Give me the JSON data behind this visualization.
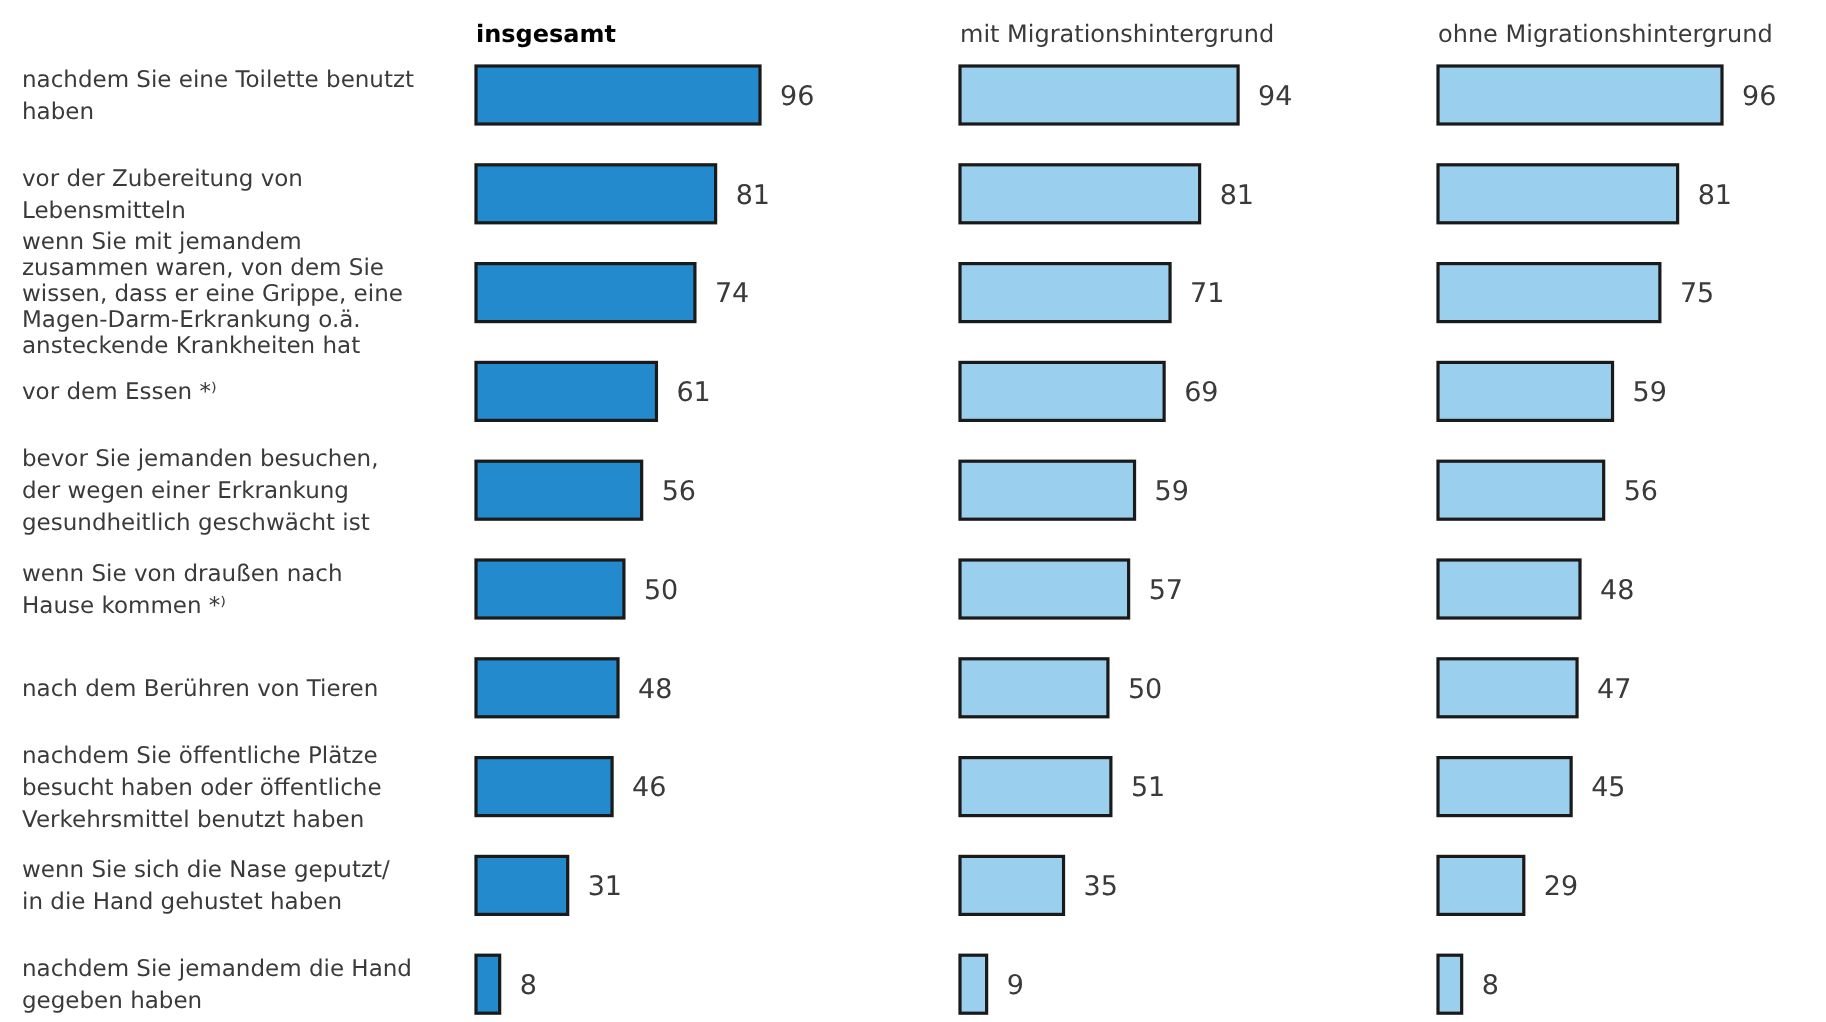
{
  "chart_data": [
    {
      "type": "bar",
      "orientation": "horizontal",
      "title": "insgesamt",
      "categories": [
        "nachdem Sie eine Toilette benutzt haben",
        "vor der Zubereitung von Lebensmitteln",
        "wenn Sie mit jemandem zusammen waren, von dem Sie wissen, dass er eine Grippe, eine Magen-Darm-Erkrankung o.ä. ansteckende Krankheiten hat",
        "vor dem Essen *⁾",
        "bevor Sie jemanden besuchen, der wegen einer Erkrankung gesundheitlich geschwächt ist",
        "wenn Sie von draußen nach Hause kommen *⁾",
        "nach dem Berühren von Tieren",
        "nachdem Sie öffentliche Plätze besucht haben oder öffentliche Verkehrsmittel benutzt haben",
        "wenn Sie sich die Nase geputzt/ in die Hand gehustet haben",
        "nachdem Sie jemandem die Hand gegeben haben"
      ],
      "values": [
        96,
        81,
        74,
        61,
        56,
        50,
        48,
        46,
        31,
        8
      ],
      "color": "#228acd",
      "data_labels": true
    },
    {
      "type": "bar",
      "orientation": "horizontal",
      "title": "mit Migrationshintergrund",
      "categories": [
        null,
        null,
        null,
        null,
        null,
        null,
        null,
        null,
        null,
        null
      ],
      "values": [
        94,
        81,
        71,
        69,
        59,
        57,
        50,
        51,
        35,
        9
      ],
      "color": "#9bcfee",
      "data_labels": true
    },
    {
      "type": "bar",
      "orientation": "horizontal",
      "title": "ohne Migrationshintergrund",
      "categories": [
        null,
        null,
        null,
        null,
        null,
        null,
        null,
        null,
        null,
        null
      ],
      "values": [
        96,
        81,
        75,
        59,
        56,
        48,
        47,
        45,
        29,
        8
      ],
      "color": "#9bcfee",
      "data_labels": true
    }
  ]
}
